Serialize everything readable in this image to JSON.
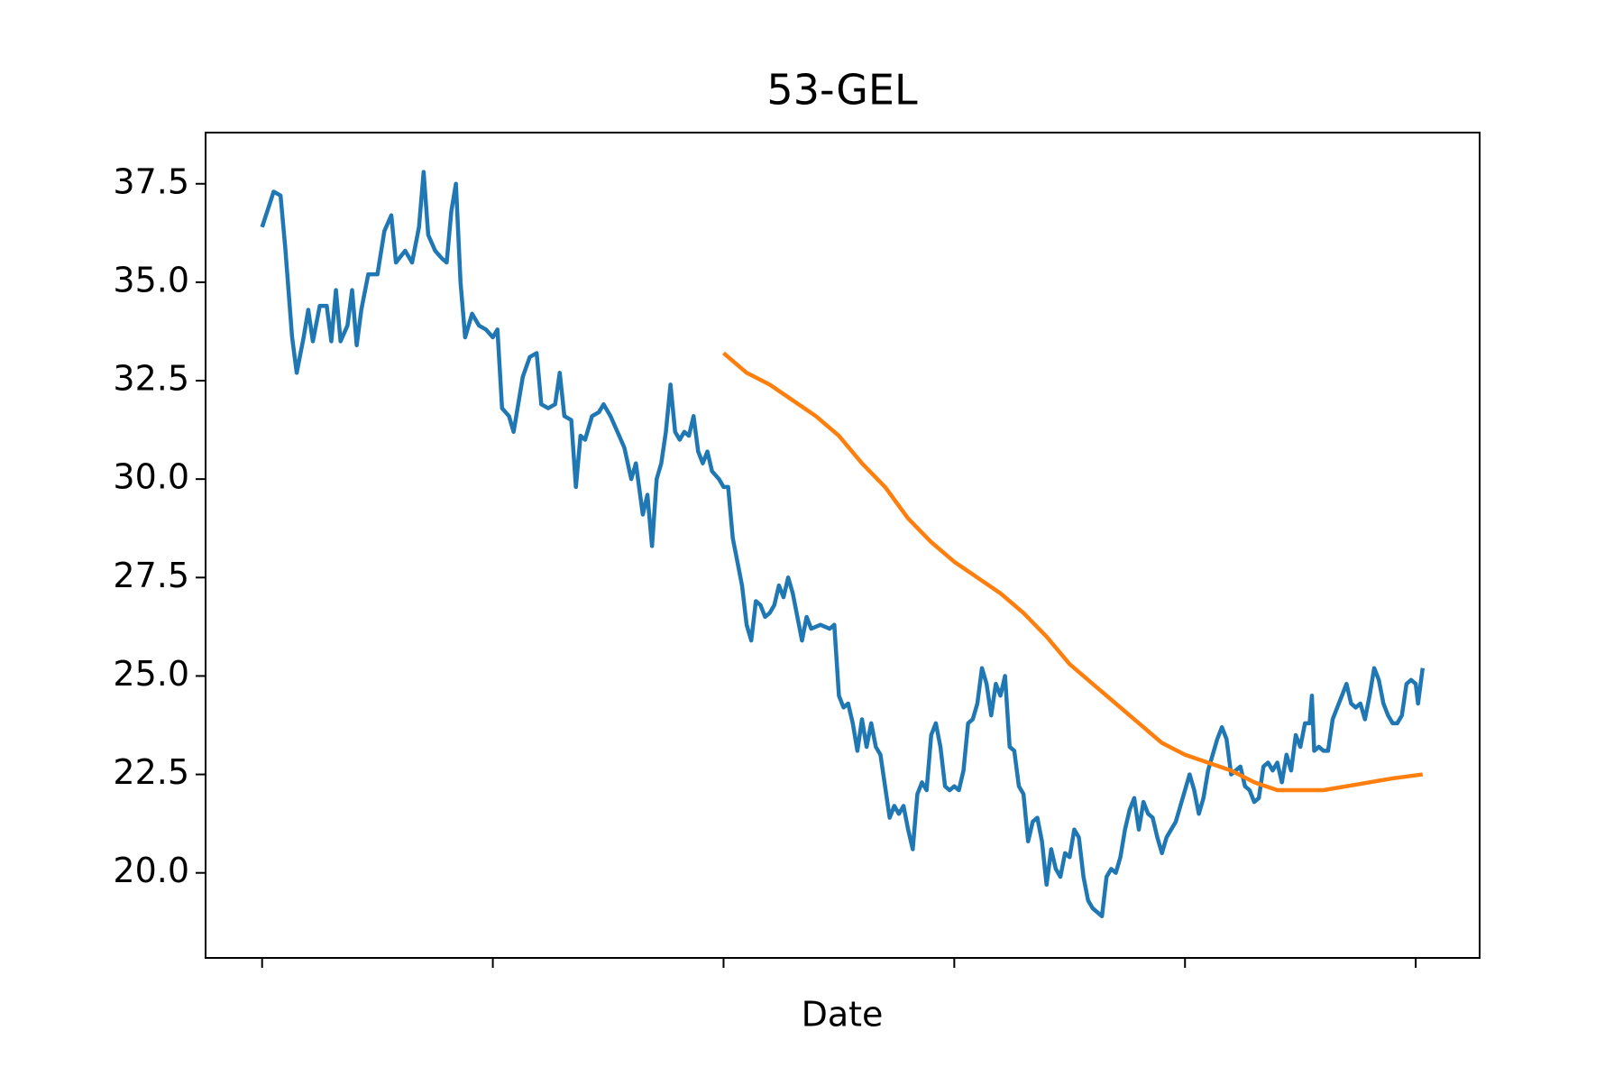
{
  "chart_data": {
    "type": "line",
    "title": "53-GEL",
    "x_label": "Date",
    "xlim": [
      -24.5,
      527.7
    ],
    "xticks": [
      0,
      100,
      200,
      300,
      400,
      500
    ],
    "ylim": [
      17.84,
      38.8
    ],
    "yticks": [
      {
        "value": 20,
        "label": "20.0"
      },
      {
        "value": 22.5,
        "label": "22.5"
      },
      {
        "value": 25,
        "label": "25.0"
      },
      {
        "value": 27.5,
        "label": "27.5"
      },
      {
        "value": 30,
        "label": "30.0"
      },
      {
        "value": 32.5,
        "label": "32.5"
      },
      {
        "value": 35,
        "label": "35.0"
      },
      {
        "value": 37.5,
        "label": "37.5"
      }
    ],
    "grid": false,
    "series": [
      {
        "color": "#1f77b4",
        "x": [
          0,
          5,
          8,
          10,
          13,
          15,
          18,
          20,
          22,
          25,
          28,
          30,
          32,
          34,
          37,
          39,
          41,
          43,
          46,
          50,
          53,
          56,
          58,
          62,
          65,
          68,
          70,
          72,
          75,
          78,
          80,
          82,
          84,
          86,
          88,
          91,
          94,
          97,
          100,
          102,
          104,
          107,
          109,
          111,
          113,
          116,
          119,
          121,
          124,
          127,
          129,
          131,
          134,
          136,
          138,
          140,
          143,
          146,
          148,
          151,
          154,
          157,
          160,
          162,
          165,
          167,
          169,
          171,
          173,
          175,
          177,
          179,
          181,
          183,
          185,
          187,
          189,
          191,
          193,
          195,
          198,
          200,
          202,
          204,
          206,
          208,
          210,
          212,
          214,
          216,
          218,
          220,
          222,
          224,
          226,
          228,
          230,
          232,
          234,
          236,
          238,
          242,
          246,
          248,
          250,
          252,
          254,
          256,
          258,
          260,
          262,
          264,
          266,
          268,
          270,
          272,
          274,
          276,
          278,
          280,
          282,
          284,
          286,
          288,
          290,
          292,
          294,
          296,
          298,
          300,
          302,
          304,
          306,
          308,
          310,
          312,
          314,
          316,
          318,
          320,
          322,
          324,
          326,
          328,
          330,
          332,
          334,
          336,
          338,
          340,
          342,
          344,
          346,
          348,
          350,
          352,
          354,
          356,
          358,
          360,
          362,
          364,
          366,
          368,
          370,
          372,
          374,
          376,
          378,
          380,
          382,
          384,
          386,
          388,
          390,
          392,
          394,
          396,
          398,
          400,
          402,
          404,
          406,
          408,
          410,
          412,
          414,
          416,
          418,
          420,
          422,
          424,
          426,
          428,
          430,
          432,
          434,
          436,
          438,
          440,
          442,
          444,
          446,
          448,
          450,
          452,
          454,
          455,
          456,
          458,
          460,
          462,
          464,
          466,
          468,
          470,
          472,
          474,
          476,
          478,
          480,
          482,
          484,
          486,
          488,
          490,
          492,
          494,
          496,
          498,
          500,
          501,
          503
        ],
        "values": [
          36.4,
          37.3,
          37.2,
          35.9,
          33.6,
          32.7,
          33.6,
          34.3,
          33.5,
          34.4,
          34.4,
          33.5,
          34.8,
          33.5,
          33.9,
          34.8,
          33.4,
          34.3,
          35.2,
          35.2,
          36.3,
          36.7,
          35.5,
          35.8,
          35.5,
          36.4,
          37.8,
          36.2,
          35.8,
          35.6,
          35.5,
          36.8,
          37.5,
          35.0,
          33.6,
          34.2,
          33.9,
          33.8,
          33.6,
          33.8,
          31.8,
          31.6,
          31.2,
          31.9,
          32.6,
          33.1,
          33.2,
          31.9,
          31.8,
          31.9,
          32.7,
          31.6,
          31.5,
          29.8,
          31.1,
          31.0,
          31.6,
          31.7,
          31.9,
          31.6,
          31.2,
          30.8,
          30.0,
          30.4,
          29.1,
          29.6,
          28.3,
          30.0,
          30.4,
          31.2,
          32.4,
          31.2,
          31.0,
          31.2,
          31.1,
          31.6,
          30.7,
          30.4,
          30.7,
          30.2,
          30.0,
          29.8,
          29.8,
          28.5,
          27.9,
          27.3,
          26.3,
          25.9,
          26.9,
          26.8,
          26.5,
          26.6,
          26.8,
          27.3,
          27.0,
          27.5,
          27.1,
          26.5,
          25.9,
          26.5,
          26.2,
          26.3,
          26.2,
          26.3,
          24.5,
          24.2,
          24.3,
          23.8,
          23.1,
          23.9,
          23.2,
          23.8,
          23.2,
          23.0,
          22.2,
          21.4,
          21.7,
          21.5,
          21.7,
          21.1,
          20.6,
          22.0,
          22.3,
          22.1,
          23.5,
          23.8,
          23.2,
          22.2,
          22.1,
          22.2,
          22.1,
          22.6,
          23.8,
          23.9,
          24.3,
          25.2,
          24.8,
          24.0,
          24.8,
          24.5,
          25.0,
          23.2,
          23.1,
          22.2,
          22.0,
          20.8,
          21.3,
          21.4,
          20.8,
          19.7,
          20.6,
          20.1,
          19.9,
          20.5,
          20.4,
          21.1,
          20.9,
          19.9,
          19.3,
          19.1,
          19.0,
          18.9,
          19.9,
          20.1,
          20.0,
          20.4,
          21.1,
          21.6,
          21.9,
          21.1,
          21.8,
          21.5,
          21.4,
          20.9,
          20.5,
          20.9,
          21.1,
          21.3,
          21.7,
          22.1,
          22.5,
          22.1,
          21.5,
          21.9,
          22.6,
          23.0,
          23.4,
          23.7,
          23.4,
          22.5,
          22.6,
          22.7,
          22.2,
          22.1,
          21.8,
          21.9,
          22.7,
          22.8,
          22.6,
          22.8,
          22.3,
          23.0,
          22.6,
          23.5,
          23.2,
          23.8,
          23.8,
          24.5,
          23.1,
          23.2,
          23.1,
          23.1,
          23.9,
          24.2,
          24.5,
          24.8,
          24.3,
          24.2,
          24.3,
          23.9,
          24.5,
          25.2,
          24.9,
          24.3,
          24.0,
          23.8,
          23.8,
          24.0,
          24.8,
          24.9,
          24.8,
          24.3,
          25.2
        ]
      },
      {
        "color": "#ff7f0e",
        "x": [
          200,
          210,
          220,
          230,
          240,
          250,
          260,
          270,
          280,
          290,
          300,
          310,
          320,
          330,
          340,
          350,
          360,
          370,
          380,
          390,
          400,
          410,
          420,
          430,
          440,
          450,
          460,
          470,
          480,
          490,
          503
        ],
        "values": [
          33.2,
          32.7,
          32.4,
          32.0,
          31.6,
          31.1,
          30.4,
          29.8,
          29.0,
          28.4,
          27.9,
          27.5,
          27.1,
          26.6,
          26.0,
          25.3,
          24.8,
          24.3,
          23.8,
          23.3,
          23.0,
          22.8,
          22.6,
          22.3,
          22.1,
          22.1,
          22.1,
          22.2,
          22.3,
          22.4,
          22.5
        ]
      }
    ]
  }
}
